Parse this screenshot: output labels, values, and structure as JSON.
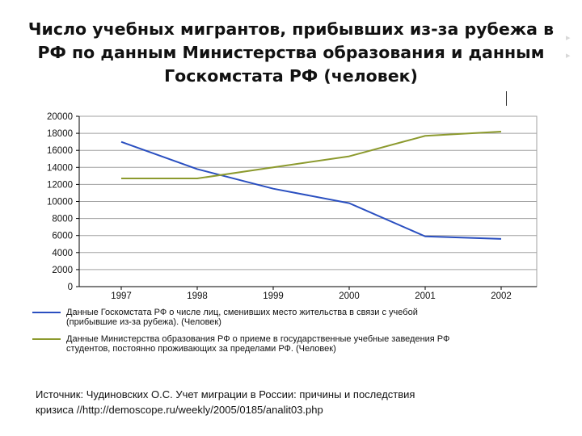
{
  "slide": {
    "title_line1": "Число учебных мигрантов, прибывших из-за рубежа в",
    "title_line2": "РФ по данным Министерства образования и данным",
    "title_line3": "Госкомстата РФ (человек)",
    "source_line1": "Источник: Чудиновских О.С. Учет миграции в России: причины и последствия",
    "source_line2": "кризиса //http://demoscope.ru/weekly/2005/0185/analit03.php"
  },
  "colors": {
    "goskomstat": "#2a4fc0",
    "ministry": "#8c9a2e",
    "grid": "#a0a0a0",
    "axis": "#000000"
  },
  "chart_data": {
    "type": "line",
    "categories": [
      "1997",
      "1998",
      "1999",
      "2000",
      "2001",
      "2002"
    ],
    "ylim": [
      0,
      20000
    ],
    "yticks": [
      0,
      2000,
      4000,
      6000,
      8000,
      10000,
      12000,
      14000,
      16000,
      18000,
      20000
    ],
    "grid": true,
    "legend_position": "bottom",
    "series": [
      {
        "name": "Данные Госкомстата РФ о числе лиц, сменивших место жительства в связи с учебой (прибывшие из-за рубежа). (Человек)",
        "name_line1": "Данные Госкомстата РФ о числе лиц, сменивших место жительства в связи с учебой",
        "name_line2": "(прибывшие из-за рубежа). (Человек)",
        "values": [
          17000,
          13800,
          11500,
          9800,
          5900,
          5600
        ]
      },
      {
        "name": "Данные Министерства образования РФ о приеме в государственные учебные заведения РФ студентов, постоянно проживающих за пределами РФ. (Человек)",
        "name_line1": "Данные Министерства образования РФ о приеме в государственные учебные заведения РФ",
        "name_line2": "студентов, постоянно проживающих за пределами РФ. (Человек)",
        "values": [
          12700,
          12700,
          14000,
          15300,
          17700,
          18200
        ]
      }
    ]
  }
}
